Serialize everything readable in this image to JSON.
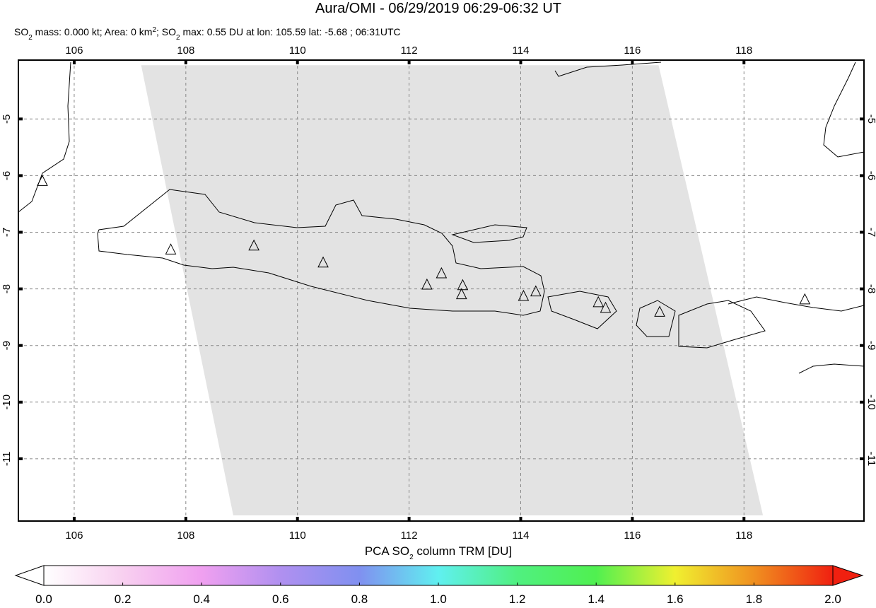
{
  "chart_data": {
    "type": "map",
    "title": "Aura/OMI - 06/29/2019 06:29-06:32 UT",
    "subtitle": [
      "SO",
      "2",
      " mass: 0.000 kt; Area: 0 km",
      "2",
      "; SO",
      "2",
      " max: 0.55 DU at lon: 105.59 lat: -5.68 ; 06:31UTC"
    ],
    "xlim": [
      105,
      120.15
    ],
    "ylim": [
      -12.1,
      -3.96
    ],
    "xticks": [
      106,
      108,
      110,
      112,
      114,
      116,
      118
    ],
    "yticks": [
      -5,
      -6,
      -7,
      -8,
      -9,
      -10,
      -11
    ],
    "grid": true,
    "swath": {
      "lon": [
        107.2,
        116.47,
        118.34,
        108.85
      ],
      "lat": [
        -4.05,
        -4.05,
        -12.0,
        -12.0
      ],
      "color": "#e3e3e3"
    },
    "volcanoes": {
      "lon": [
        105.43,
        107.73,
        109.22,
        110.46,
        112.32,
        112.58,
        112.96,
        112.94,
        114.05,
        114.27,
        115.39,
        115.52,
        116.49,
        119.09
      ],
      "lat": [
        -6.1,
        -7.31,
        -7.24,
        -7.54,
        -7.93,
        -7.73,
        -7.94,
        -8.1,
        -8.13,
        -8.05,
        -8.24,
        -8.34,
        -8.41,
        -8.19
      ]
    },
    "colorbar": {
      "label": [
        "PCA SO",
        "2",
        " column TRM [DU]"
      ],
      "lim": [
        0,
        2
      ],
      "ticks": [
        {
          "value": 0,
          "label": "0.0"
        },
        {
          "value": 0.2,
          "label": "0.2"
        },
        {
          "value": 0.4,
          "label": "0.4"
        },
        {
          "value": 0.6,
          "label": "0.6"
        },
        {
          "value": 0.8,
          "label": "0.8"
        },
        {
          "value": 1,
          "label": "1.0"
        },
        {
          "value": 1.2,
          "label": "1.2"
        },
        {
          "value": 1.4,
          "label": "1.4"
        },
        {
          "value": 1.6,
          "label": "1.6"
        },
        {
          "value": 1.8,
          "label": "1.8"
        },
        {
          "value": 2,
          "label": "2.0"
        }
      ],
      "colors": [
        "#ffffff",
        "#f8d0f0",
        "#f0a0f0",
        "#b090f0",
        "#8090f0",
        "#60f0f0",
        "#50f080",
        "#50f050",
        "#f0f030",
        "#f09020",
        "#f02010"
      ]
    }
  }
}
